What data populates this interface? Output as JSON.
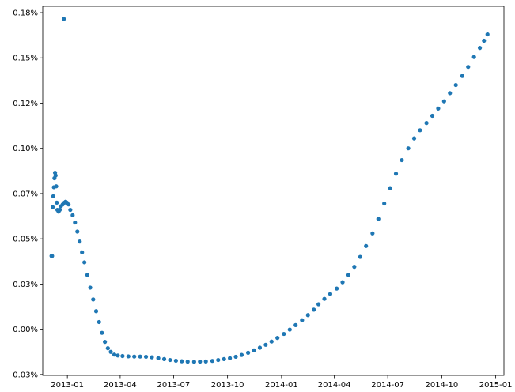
{
  "chart_data": {
    "type": "scatter",
    "title": "",
    "xlabel": "",
    "ylabel": "",
    "grid": false,
    "x_axis": {
      "type": "date",
      "range": [
        "2012-11-20",
        "2015-01-15"
      ],
      "ticks": [
        {
          "value": "2013-01-01",
          "label": "2013-01"
        },
        {
          "value": "2013-04-01",
          "label": "2013-04"
        },
        {
          "value": "2013-07-01",
          "label": "2013-07"
        },
        {
          "value": "2013-10-01",
          "label": "2013-10"
        },
        {
          "value": "2014-01-01",
          "label": "2014-01"
        },
        {
          "value": "2014-04-01",
          "label": "2014-04"
        },
        {
          "value": "2014-07-01",
          "label": "2014-07"
        },
        {
          "value": "2014-10-01",
          "label": "2014-10"
        },
        {
          "value": "2015-01-01",
          "label": "2015-01"
        }
      ]
    },
    "y_axis": {
      "unit": "%",
      "range": [
        -0.0255,
        0.1785
      ],
      "ticks": [
        {
          "value": -0.025,
          "label": "-0.03%"
        },
        {
          "value": 0.0,
          "label": "0.00%"
        },
        {
          "value": 0.025,
          "label": "0.03%"
        },
        {
          "value": 0.05,
          "label": "0.05%"
        },
        {
          "value": 0.075,
          "label": "0.07%"
        },
        {
          "value": 0.1,
          "label": "0.10%"
        },
        {
          "value": 0.125,
          "label": "0.12%"
        },
        {
          "value": 0.15,
          "label": "0.15%"
        },
        {
          "value": 0.175,
          "label": "0.18%"
        }
      ]
    },
    "series": [
      {
        "color": "#1f77b4",
        "points": [
          {
            "x": "2012-12-05",
            "y": 0.0405
          },
          {
            "x": "2012-12-06",
            "y": 0.0405
          },
          {
            "x": "2012-12-07",
            "y": 0.0675
          },
          {
            "x": "2012-12-08",
            "y": 0.0735
          },
          {
            "x": "2012-12-09",
            "y": 0.0785
          },
          {
            "x": "2012-12-10",
            "y": 0.0835
          },
          {
            "x": "2012-12-11",
            "y": 0.0865
          },
          {
            "x": "2012-12-12",
            "y": 0.085
          },
          {
            "x": "2012-12-13",
            "y": 0.079
          },
          {
            "x": "2012-12-14",
            "y": 0.07
          },
          {
            "x": "2012-12-15",
            "y": 0.066
          },
          {
            "x": "2012-12-17",
            "y": 0.065
          },
          {
            "x": "2012-12-19",
            "y": 0.066
          },
          {
            "x": "2012-12-21",
            "y": 0.068
          },
          {
            "x": "2012-12-24",
            "y": 0.069
          },
          {
            "x": "2012-12-26",
            "y": 0.1715
          },
          {
            "x": "2012-12-27",
            "y": 0.07
          },
          {
            "x": "2012-12-29",
            "y": 0.0705
          },
          {
            "x": "2012-12-31",
            "y": 0.07
          },
          {
            "x": "2013-01-03",
            "y": 0.069
          },
          {
            "x": "2013-01-06",
            "y": 0.066
          },
          {
            "x": "2013-01-10",
            "y": 0.063
          },
          {
            "x": "2013-01-14",
            "y": 0.059
          },
          {
            "x": "2013-01-18",
            "y": 0.054
          },
          {
            "x": "2013-01-22",
            "y": 0.0485
          },
          {
            "x": "2013-01-26",
            "y": 0.0425
          },
          {
            "x": "2013-01-30",
            "y": 0.037
          },
          {
            "x": "2013-02-04",
            "y": 0.03
          },
          {
            "x": "2013-02-09",
            "y": 0.023
          },
          {
            "x": "2013-02-14",
            "y": 0.0165
          },
          {
            "x": "2013-02-19",
            "y": 0.01
          },
          {
            "x": "2013-02-24",
            "y": 0.004
          },
          {
            "x": "2013-03-01",
            "y": -0.002
          },
          {
            "x": "2013-03-06",
            "y": -0.007
          },
          {
            "x": "2013-03-11",
            "y": -0.0105
          },
          {
            "x": "2013-03-16",
            "y": -0.0125
          },
          {
            "x": "2013-03-22",
            "y": -0.014
          },
          {
            "x": "2013-03-28",
            "y": -0.0145
          },
          {
            "x": "2013-04-05",
            "y": -0.0148
          },
          {
            "x": "2013-04-15",
            "y": -0.015
          },
          {
            "x": "2013-04-25",
            "y": -0.0151
          },
          {
            "x": "2013-05-05",
            "y": -0.0151
          },
          {
            "x": "2013-05-15",
            "y": -0.0152
          },
          {
            "x": "2013-05-25",
            "y": -0.0155
          },
          {
            "x": "2013-06-05",
            "y": -0.016
          },
          {
            "x": "2013-06-15",
            "y": -0.0165
          },
          {
            "x": "2013-06-25",
            "y": -0.017
          },
          {
            "x": "2013-07-05",
            "y": -0.0174
          },
          {
            "x": "2013-07-15",
            "y": -0.0177
          },
          {
            "x": "2013-07-25",
            "y": -0.0179
          },
          {
            "x": "2013-08-05",
            "y": -0.018
          },
          {
            "x": "2013-08-15",
            "y": -0.0179
          },
          {
            "x": "2013-08-25",
            "y": -0.0178
          },
          {
            "x": "2013-09-05",
            "y": -0.0175
          },
          {
            "x": "2013-09-15",
            "y": -0.017
          },
          {
            "x": "2013-09-25",
            "y": -0.0165
          },
          {
            "x": "2013-10-05",
            "y": -0.016
          },
          {
            "x": "2013-10-15",
            "y": -0.0152
          },
          {
            "x": "2013-10-25",
            "y": -0.0142
          },
          {
            "x": "2013-11-05",
            "y": -0.013
          },
          {
            "x": "2013-11-15",
            "y": -0.0117
          },
          {
            "x": "2013-11-25",
            "y": -0.0102
          },
          {
            "x": "2013-12-05",
            "y": -0.0086
          },
          {
            "x": "2013-12-15",
            "y": -0.0068
          },
          {
            "x": "2013-12-25",
            "y": -0.0048
          },
          {
            "x": "2014-01-05",
            "y": -0.0026
          },
          {
            "x": "2014-01-15",
            "y": -0.0002
          },
          {
            "x": "2014-01-25",
            "y": 0.0023
          },
          {
            "x": "2014-02-05",
            "y": 0.005
          },
          {
            "x": "2014-02-15",
            "y": 0.0078
          },
          {
            "x": "2014-02-25",
            "y": 0.0108
          },
          {
            "x": "2014-03-05",
            "y": 0.0138
          },
          {
            "x": "2014-03-15",
            "y": 0.0168
          },
          {
            "x": "2014-03-25",
            "y": 0.0195
          },
          {
            "x": "2014-04-05",
            "y": 0.0225
          },
          {
            "x": "2014-04-15",
            "y": 0.026
          },
          {
            "x": "2014-04-25",
            "y": 0.03
          },
          {
            "x": "2014-05-05",
            "y": 0.0345
          },
          {
            "x": "2014-05-15",
            "y": 0.04
          },
          {
            "x": "2014-05-25",
            "y": 0.046
          },
          {
            "x": "2014-06-05",
            "y": 0.053
          },
          {
            "x": "2014-06-15",
            "y": 0.061
          },
          {
            "x": "2014-06-25",
            "y": 0.0695
          },
          {
            "x": "2014-07-05",
            "y": 0.078
          },
          {
            "x": "2014-07-15",
            "y": 0.086
          },
          {
            "x": "2014-07-25",
            "y": 0.0935
          },
          {
            "x": "2014-08-05",
            "y": 0.1
          },
          {
            "x": "2014-08-15",
            "y": 0.1055
          },
          {
            "x": "2014-08-25",
            "y": 0.11
          },
          {
            "x": "2014-09-05",
            "y": 0.114
          },
          {
            "x": "2014-09-15",
            "y": 0.118
          },
          {
            "x": "2014-09-25",
            "y": 0.122
          },
          {
            "x": "2014-10-05",
            "y": 0.126
          },
          {
            "x": "2014-10-15",
            "y": 0.1305
          },
          {
            "x": "2014-10-25",
            "y": 0.135
          },
          {
            "x": "2014-11-05",
            "y": 0.14
          },
          {
            "x": "2014-11-15",
            "y": 0.145
          },
          {
            "x": "2014-11-25",
            "y": 0.1505
          },
          {
            "x": "2014-12-05",
            "y": 0.1555
          },
          {
            "x": "2014-12-12",
            "y": 0.1595
          },
          {
            "x": "2014-12-18",
            "y": 0.163
          }
        ]
      }
    ]
  }
}
